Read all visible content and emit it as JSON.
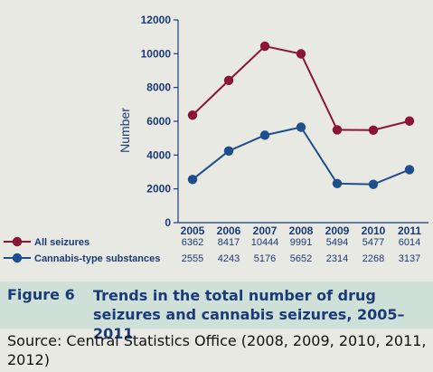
{
  "chart_data": {
    "type": "line",
    "categories": [
      "2005",
      "2006",
      "2007",
      "2008",
      "2009",
      "2010",
      "2011"
    ],
    "series": [
      {
        "name": "All seizures",
        "values": [
          6362,
          8417,
          10444,
          9991,
          5494,
          5477,
          6014
        ],
        "color": "#8a1538"
      },
      {
        "name": "Cannabis-type substances",
        "values": [
          2555,
          4243,
          5176,
          5652,
          2314,
          2268,
          3137
        ],
        "color": "#1f4e8c"
      }
    ],
    "ylabel": "Number",
    "ylim": [
      0,
      12000
    ],
    "yticks": [
      0,
      2000,
      4000,
      6000,
      8000,
      10000,
      12000
    ],
    "grid": false,
    "legend": "data table below chart"
  },
  "caption": {
    "figure_label": "Figure 6",
    "title": "Trends in the total number of drug seizures and cannabis seizures, 2005–2011"
  },
  "source": "Source: Central Statistics Office (2008, 2009, 2010, 2011, 2012)"
}
